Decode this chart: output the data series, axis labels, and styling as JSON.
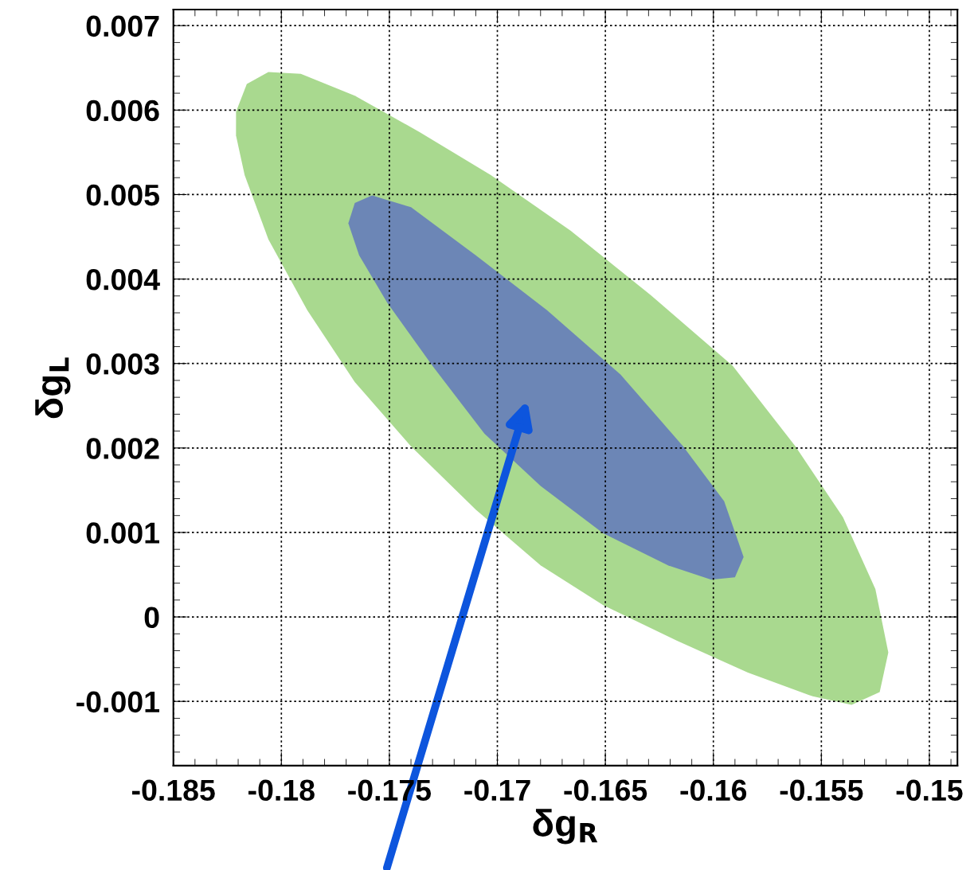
{
  "chart_data": {
    "type": "area",
    "xlabel": "δg$_{R}$",
    "ylabel": "δg$_{L}$",
    "xlim": [
      -0.185,
      -0.1487
    ],
    "ylim": [
      -0.00176,
      0.00719
    ],
    "xticks": [
      -0.185,
      -0.18,
      -0.175,
      -0.17,
      -0.165,
      -0.16,
      -0.155,
      -0.15
    ],
    "yticks": [
      -0.001,
      0,
      0.001,
      0.002,
      0.003,
      0.004,
      0.005,
      0.006,
      0.007
    ],
    "grid": true,
    "series": [
      {
        "color": "#a9d98f",
        "x": [
          -0.1821,
          -0.1816,
          -0.1806,
          -0.1791,
          -0.1766,
          -0.1736,
          -0.1703,
          -0.1666,
          -0.1629,
          -0.1591,
          -0.1562,
          -0.154,
          -0.1525,
          -0.1519,
          -0.1523,
          -0.1536,
          -0.1554,
          -0.1584,
          -0.1617,
          -0.1651,
          -0.168,
          -0.171,
          -0.174,
          -0.1766,
          -0.1788,
          -0.1806,
          -0.1817,
          -0.1821
        ],
        "values": [
          0.00598,
          0.00631,
          0.00645,
          0.00643,
          0.00617,
          0.00574,
          0.00523,
          0.00457,
          0.00381,
          0.00297,
          0.00202,
          0.00118,
          0.00033,
          -0.00042,
          -0.00089,
          -0.00104,
          -0.00094,
          -0.00066,
          -0.00028,
          0.00014,
          0.00061,
          0.00127,
          0.00202,
          0.00278,
          0.00363,
          0.00447,
          0.00523,
          0.0057
        ]
      },
      {
        "color": "#6c86b6",
        "x": [
          -0.1769,
          -0.1766,
          -0.1758,
          -0.174,
          -0.171,
          -0.1677,
          -0.1643,
          -0.1614,
          -0.1595,
          -0.1586,
          -0.159,
          -0.1601,
          -0.1621,
          -0.1651,
          -0.168,
          -0.1706,
          -0.173,
          -0.1751,
          -0.1764
        ],
        "values": [
          0.00466,
          0.0049,
          0.00499,
          0.00485,
          0.00428,
          0.00363,
          0.00287,
          0.00202,
          0.00137,
          0.00071,
          0.00047,
          0.00044,
          0.00061,
          0.00099,
          0.00155,
          0.00217,
          0.00297,
          0.00372,
          0.00428
        ]
      }
    ]
  }
}
